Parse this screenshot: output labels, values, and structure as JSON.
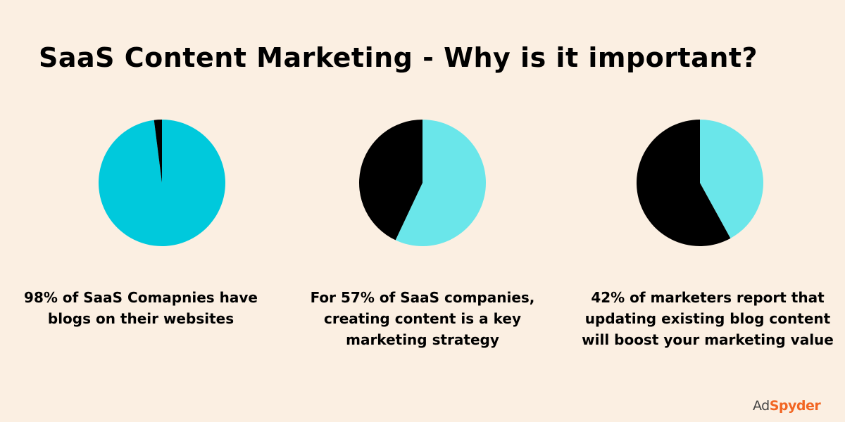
{
  "title": "SaaS Content Marketing - Why is it important?",
  "chart_data": [
    {
      "type": "pie",
      "slices": [
        {
          "value": 98,
          "color": "#00c9dc"
        },
        {
          "value": 2,
          "color": "#000000"
        }
      ],
      "caption": "98% of SaaS Comapnies have blogs on their websites"
    },
    {
      "type": "pie",
      "slices": [
        {
          "value": 57,
          "color": "#6ae6ea"
        },
        {
          "value": 43,
          "color": "#000000"
        }
      ],
      "caption": "For 57% of SaaS companies, creating content is a key marketing strategy"
    },
    {
      "type": "pie",
      "slices": [
        {
          "value": 42,
          "color": "#6ae6ea"
        },
        {
          "value": 58,
          "color": "#000000"
        }
      ],
      "caption": "42% of marketers report that updating existing blog content will boost your marketing value"
    }
  ],
  "logo": {
    "part1": "Ad",
    "part2": "Spyder"
  },
  "background": "#fbefe2"
}
